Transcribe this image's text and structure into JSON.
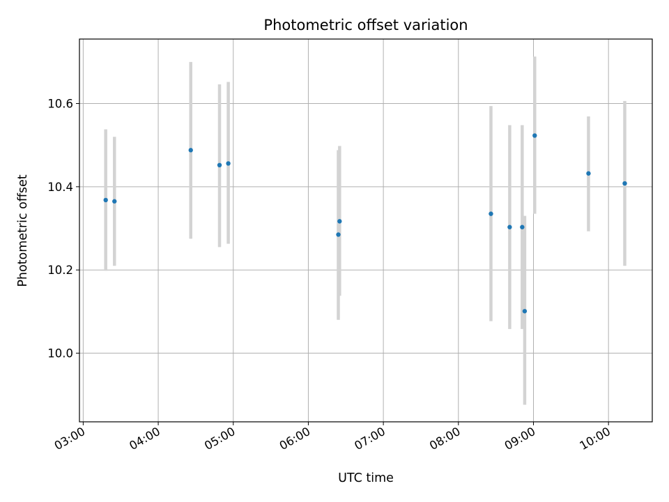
{
  "chart_data": {
    "type": "scatter",
    "title": "Photometric offset variation",
    "xlabel": "UTC time",
    "ylabel": "Photometric offset",
    "xlim": [
      "02:57",
      "10:35"
    ],
    "ylim": [
      9.835,
      10.755
    ],
    "grid": true,
    "x_ticks": [
      "03:00",
      "04:00",
      "05:00",
      "06:00",
      "07:00",
      "08:00",
      "09:00",
      "10:00"
    ],
    "y_ticks": [
      10.0,
      10.2,
      10.4,
      10.6
    ],
    "y_tick_labels": [
      "10.0",
      "10.2",
      "10.4",
      "10.6"
    ],
    "points": [
      {
        "x": "03:18",
        "y": 10.368,
        "err_low": 10.198,
        "err_high": 10.538
      },
      {
        "x": "03:25",
        "y": 10.365,
        "err_low": 10.21,
        "err_high": 10.52
      },
      {
        "x": "04:26",
        "y": 10.488,
        "err_low": 10.275,
        "err_high": 10.7
      },
      {
        "x": "04:49",
        "y": 10.452,
        "err_low": 10.255,
        "err_high": 10.646
      },
      {
        "x": "04:56",
        "y": 10.456,
        "err_low": 10.263,
        "err_high": 10.652
      },
      {
        "x": "06:24",
        "y": 10.285,
        "err_low": 10.08,
        "err_high": 10.488
      },
      {
        "x": "06:25",
        "y": 10.317,
        "err_low": 10.138,
        "err_high": 10.498
      },
      {
        "x": "08:26",
        "y": 10.335,
        "err_low": 10.077,
        "err_high": 10.594
      },
      {
        "x": "08:41",
        "y": 10.303,
        "err_low": 10.058,
        "err_high": 10.548
      },
      {
        "x": "08:51",
        "y": 10.303,
        "err_low": 10.058,
        "err_high": 10.548
      },
      {
        "x": "08:53",
        "y": 10.101,
        "err_low": 9.876,
        "err_high": 10.33
      },
      {
        "x": "09:01",
        "y": 10.523,
        "err_low": 10.335,
        "err_high": 10.713
      },
      {
        "x": "09:44",
        "y": 10.432,
        "err_low": 10.293,
        "err_high": 10.569
      },
      {
        "x": "10:13",
        "y": 10.408,
        "err_low": 10.21,
        "err_high": 10.606
      }
    ],
    "colors": {
      "point": "#1f77b4",
      "errorbar": "#d3d3d3",
      "grid": "#b0b0b0",
      "axis": "#000000"
    }
  }
}
